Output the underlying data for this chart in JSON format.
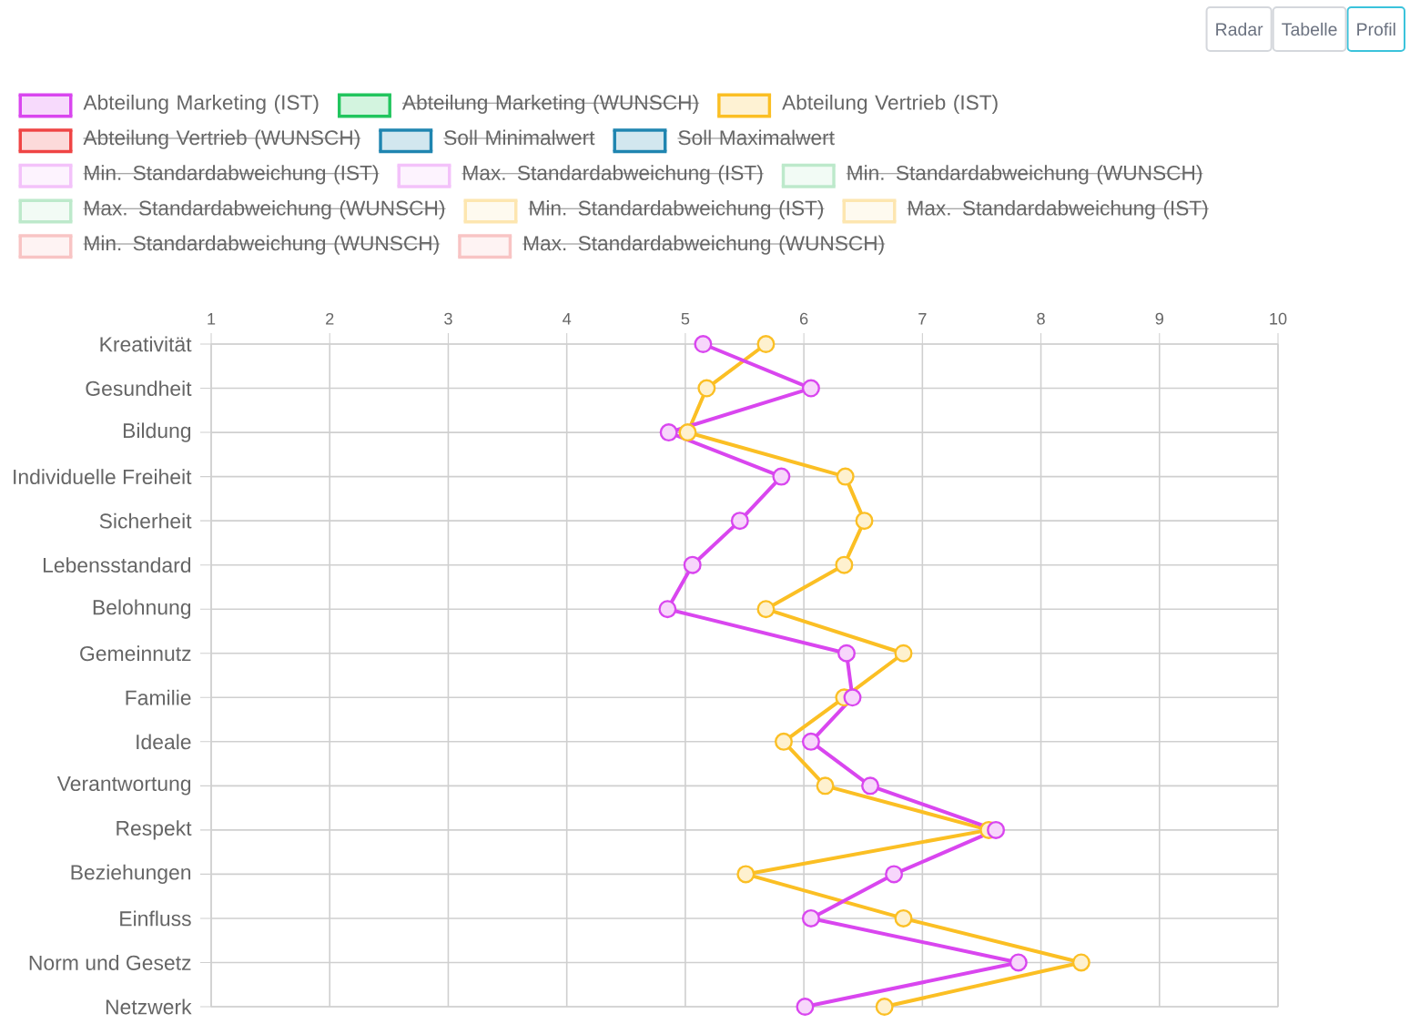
{
  "chart_data": {
    "type": "line",
    "orientation": "horizontal",
    "categories": [
      "Kreativität",
      "Gesundheit",
      "Bildung",
      "Individuelle Freiheit",
      "Sicherheit",
      "Lebensstandard",
      "Belohnung",
      "Gemeinnutz",
      "Familie",
      "Ideale",
      "Verantwortung",
      "Respekt",
      "Beziehungen",
      "Einfluss",
      "Norm und Gesetz",
      "Netzwerk"
    ],
    "xlim": [
      1,
      10
    ],
    "xticks": [
      1,
      2,
      3,
      4,
      5,
      6,
      7,
      8,
      9,
      10
    ],
    "series": [
      {
        "name": "Abteilung Marketing (IST)",
        "color": "#d946ef",
        "values": [
          5.15,
          6.06,
          4.86,
          5.81,
          5.46,
          5.06,
          4.85,
          6.36,
          6.41,
          6.06,
          6.56,
          7.62,
          6.76,
          6.06,
          7.81,
          6.01
        ]
      },
      {
        "name": "Abteilung Marketing (WUNSCH)",
        "color": "#22c55e",
        "values": [
          null,
          null,
          null,
          null,
          null,
          null,
          null,
          null,
          null,
          null,
          null,
          null,
          null,
          null,
          null,
          null
        ]
      },
      {
        "name": "Abteilung Vertrieb (IST)",
        "color": "#fbbf24",
        "values": [
          5.68,
          5.18,
          5.02,
          6.35,
          6.51,
          6.34,
          5.68,
          6.84,
          6.34,
          5.83,
          6.18,
          7.56,
          5.51,
          6.84,
          8.34,
          6.68
        ]
      },
      {
        "name": "Abteilung Vertrieb (WUNSCH)",
        "color": "#ef4444",
        "values": [
          null,
          null,
          null,
          null,
          null,
          null,
          null,
          null,
          null,
          null,
          null,
          null,
          null,
          null,
          null,
          null
        ]
      },
      {
        "name": "Soll Minimalwert",
        "color": "#1f85b0",
        "values": [
          null,
          null,
          null,
          null,
          null,
          null,
          null,
          null,
          null,
          null,
          null,
          null,
          null,
          null,
          null,
          null
        ]
      },
      {
        "name": "Soll Maximalwert",
        "color": "#1f85b0",
        "values": [
          null,
          null,
          null,
          null,
          null,
          null,
          null,
          null,
          null,
          null,
          null,
          null,
          null,
          null,
          null,
          null
        ]
      },
      {
        "name": "Min. Standardabweichung (IST)",
        "color": "#f3c2fa",
        "values": [
          null,
          null,
          null,
          null,
          null,
          null,
          null,
          null,
          null,
          null,
          null,
          null,
          null,
          null,
          null,
          null
        ]
      },
      {
        "name": "Max. Standardabweichung (IST)",
        "color": "#f3c2fa",
        "values": [
          null,
          null,
          null,
          null,
          null,
          null,
          null,
          null,
          null,
          null,
          null,
          null,
          null,
          null,
          null,
          null
        ]
      },
      {
        "name": "Min. Standardabweichung (WUNSCH)",
        "color": "#bde9cb",
        "values": [
          null,
          null,
          null,
          null,
          null,
          null,
          null,
          null,
          null,
          null,
          null,
          null,
          null,
          null,
          null,
          null
        ]
      },
      {
        "name": "Max. Standardabweichung (WUNSCH)",
        "color": "#bde9cb",
        "values": [
          null,
          null,
          null,
          null,
          null,
          null,
          null,
          null,
          null,
          null,
          null,
          null,
          null,
          null,
          null,
          null
        ]
      },
      {
        "name": "Min. Standardabweichung (IST)",
        "color": "#fde6b0",
        "values": [
          null,
          null,
          null,
          null,
          null,
          null,
          null,
          null,
          null,
          null,
          null,
          null,
          null,
          null,
          null,
          null
        ]
      },
      {
        "name": "Max. Standardabweichung (IST)",
        "color": "#fde6b0",
        "values": [
          null,
          null,
          null,
          null,
          null,
          null,
          null,
          null,
          null,
          null,
          null,
          null,
          null,
          null,
          null,
          null
        ]
      },
      {
        "name": "Min. Standardabweichung (WUNSCH)",
        "color": "#f8c4c4",
        "values": [
          null,
          null,
          null,
          null,
          null,
          null,
          null,
          null,
          null,
          null,
          null,
          null,
          null,
          null,
          null,
          null
        ]
      },
      {
        "name": "Max. Standardabweichung (WUNSCH)",
        "color": "#f8c4c4",
        "values": [
          null,
          null,
          null,
          null,
          null,
          null,
          null,
          null,
          null,
          null,
          null,
          null,
          null,
          null,
          null,
          null
        ]
      }
    ],
    "marker": "circle",
    "line_style": "solid",
    "grid": true,
    "legend": "top left",
    "annotations": [
      "Radar",
      "Tabelle",
      "Profil"
    ]
  }
}
